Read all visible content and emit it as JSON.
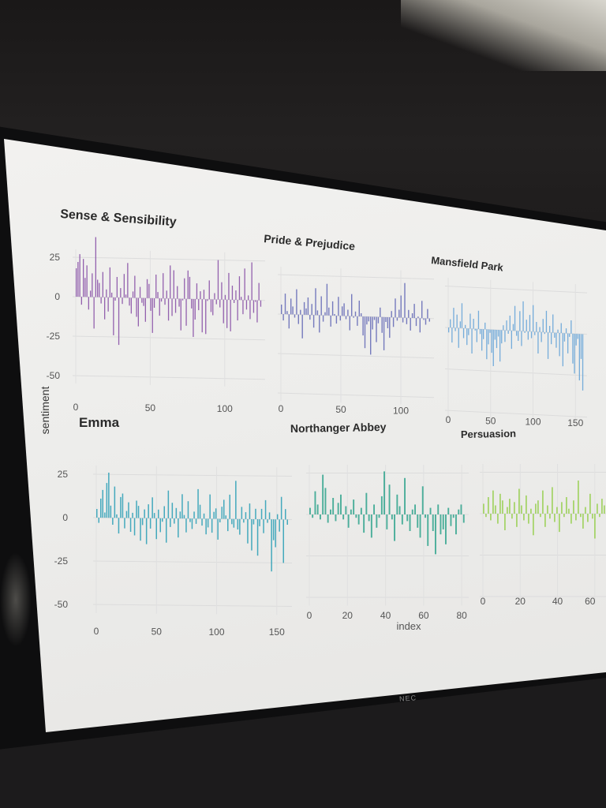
{
  "brand_label": "NEC",
  "chart_data": {
    "type": "bar",
    "ylabel": "sentiment",
    "xlabel": "index",
    "grid": true,
    "panels": [
      {
        "title": "Sense & Sensibility",
        "color": "#8b55a8",
        "xlim": [
          0,
          125
        ],
        "x_ticks": [
          "0",
          "50",
          "100"
        ],
        "y_ticks": [
          "25",
          "0",
          "-25",
          "-50"
        ],
        "values": [
          18,
          22,
          27,
          -5,
          24,
          12,
          20,
          -8,
          4,
          15,
          -20,
          38,
          11,
          9,
          -4,
          16,
          -14,
          5,
          -9,
          19,
          3,
          -24,
          -2,
          13,
          -30,
          6,
          -4,
          15,
          2,
          22,
          -5,
          -10,
          4,
          14,
          -12,
          -18,
          7,
          -3,
          -5,
          -15,
          12,
          9,
          -8,
          -22,
          -6,
          15,
          4,
          -11,
          -2,
          16,
          -4,
          5,
          -14,
          21,
          -11,
          18,
          -9,
          8,
          -5,
          -20,
          -1,
          13,
          -17,
          18,
          14,
          -6,
          -24,
          -13,
          10,
          -7,
          5,
          -21,
          6,
          -22,
          -1,
          12,
          -8,
          -10,
          4,
          -3,
          25,
          -5,
          11,
          -15,
          3,
          -18,
          17,
          -20,
          9,
          -2,
          6,
          -13,
          15,
          2,
          -9,
          20,
          -6,
          3,
          -12,
          24,
          -8,
          -1,
          -14,
          11,
          -4
        ]
      },
      {
        "title": "Pride & Prejudice",
        "color": "#6a70b8",
        "xlim": [
          0,
          125
        ],
        "x_ticks": [
          "0",
          "50",
          "100"
        ],
        "y_ticks": [],
        "values": [
          6,
          -4,
          13,
          2,
          -9,
          10,
          5,
          -2,
          16,
          -6,
          3,
          -15,
          8,
          4,
          11,
          -3,
          7,
          -8,
          17,
          3,
          -11,
          12,
          -4,
          2,
          20,
          5,
          -7,
          9,
          1,
          -5,
          12,
          -3,
          6,
          8,
          -2,
          4,
          -9,
          14,
          -1,
          3,
          -6,
          10,
          2,
          -12,
          -20,
          -5,
          -3,
          -24,
          -8,
          -2,
          -16,
          -4,
          6,
          -10,
          -21,
          -3,
          -7,
          -13,
          4,
          -6,
          12,
          -2,
          5,
          14,
          -3,
          22,
          -4,
          5,
          -8,
          3,
          9,
          -5,
          1,
          -9,
          11,
          -1,
          -4,
          6,
          -2
        ]
      },
      {
        "title": "Mansfield Park",
        "color": "#6aa6d8",
        "xlim": [
          0,
          160
        ],
        "x_ticks": [
          "0",
          "50",
          "100",
          "150"
        ],
        "y_ticks": [],
        "values": [
          -3,
          5,
          -9,
          12,
          -2,
          8,
          -12,
          4,
          15,
          -6,
          2,
          -10,
          -4,
          9,
          -15,
          6,
          -1,
          -8,
          11,
          -3,
          -13,
          -6,
          4,
          -18,
          -9,
          -2,
          -14,
          -22,
          -6,
          -11,
          -4,
          -19,
          -8,
          3,
          -7,
          6,
          -2,
          9,
          -11,
          4,
          15,
          -3,
          -6,
          12,
          -9,
          18,
          -1,
          7,
          -5,
          10,
          -4,
          16,
          -2,
          6,
          -13,
          3,
          -6,
          8,
          -1,
          13,
          -16,
          4,
          -7,
          11,
          -3,
          -9,
          2,
          -14,
          6,
          -20,
          -5,
          3,
          -12,
          -2,
          8,
          -18,
          -24,
          -7,
          -3,
          -28,
          -15,
          -34
        ]
      },
      {
        "title": "Emma",
        "color": "#35a3b8",
        "xlim": [
          0,
          160
        ],
        "x_ticks": [
          "0",
          "50",
          "100",
          "150"
        ],
        "y_ticks": [
          "25",
          "0",
          "-25",
          "-50"
        ],
        "values": [
          5,
          -3,
          11,
          16,
          3,
          20,
          26,
          7,
          -4,
          18,
          2,
          -9,
          12,
          14,
          -6,
          4,
          9,
          -8,
          3,
          -10,
          10,
          7,
          -13,
          -4,
          5,
          -15,
          8,
          -6,
          12,
          3,
          -12,
          5,
          -8,
          -2,
          7,
          -14,
          16,
          -5,
          9,
          -3,
          6,
          -11,
          4,
          14,
          2,
          -8,
          10,
          -2,
          -6,
          4,
          -3,
          17,
          8,
          -4,
          3,
          -9,
          -5,
          14,
          -8,
          4,
          6,
          -12,
          -2,
          7,
          11,
          2,
          -7,
          14,
          -3,
          -5,
          22,
          -6,
          -9,
          7,
          -2,
          4,
          -14,
          9,
          -18,
          -3,
          6,
          -21,
          -4,
          6,
          -8,
          11,
          -2,
          4,
          -30,
          -12,
          -16,
          3,
          -7,
          13,
          -25,
          6,
          -3
        ]
      },
      {
        "title": "Northanger Abbey",
        "color": "#3da892",
        "xlim": [
          0,
          82
        ],
        "x_ticks": [
          "0",
          "20",
          "40",
          "60",
          "80"
        ],
        "y_ticks": [],
        "values": [
          4,
          -2,
          14,
          6,
          -3,
          24,
          16,
          -5,
          3,
          10,
          -4,
          7,
          12,
          -3,
          5,
          -8,
          3,
          9,
          -2,
          -6,
          4,
          -11,
          13,
          -4,
          -14,
          6,
          -8,
          -2,
          11,
          26,
          -9,
          18,
          -3,
          -16,
          12,
          5,
          -6,
          22,
          -4,
          -10,
          3,
          6,
          -8,
          -14,
          17,
          -2,
          -19,
          4,
          -10,
          -24,
          6,
          -12,
          -9,
          -18,
          4,
          -7,
          -2,
          -12,
          3,
          6,
          -5
        ]
      },
      {
        "title": "Persuasion",
        "color": "#9fd160",
        "xlim": [
          0,
          66
        ],
        "x_ticks": [
          "0",
          "20",
          "40",
          "60"
        ],
        "y_ticks": [],
        "values": [
          6,
          -2,
          10,
          -4,
          14,
          5,
          -6,
          12,
          8,
          -10,
          4,
          9,
          -3,
          7,
          -8,
          15,
          5,
          -4,
          11,
          -6,
          3,
          -13,
          6,
          8,
          -2,
          14,
          -8,
          5,
          -3,
          16,
          -5,
          4,
          -11,
          7,
          -2,
          10,
          3,
          -6,
          8,
          -4,
          20,
          -2,
          -9,
          4,
          -5,
          12,
          -3,
          -15,
          6,
          -2,
          9,
          5
        ]
      }
    ]
  }
}
